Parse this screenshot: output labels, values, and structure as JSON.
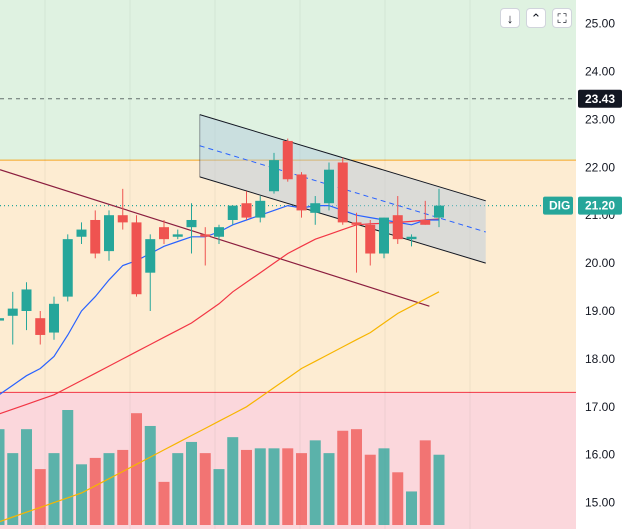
{
  "toolbar": {
    "buttons": [
      {
        "name": "scroll-down-button",
        "icon": "arrow-down-icon",
        "glyph": "↓"
      },
      {
        "name": "collapse-button",
        "icon": "collapse-icon",
        "glyph": "⌃"
      },
      {
        "name": "fullscreen-button",
        "icon": "fullscreen-icon",
        "glyph": "⛶"
      }
    ]
  },
  "chart_data": {
    "type": "candlestick",
    "symbol": "DIG",
    "last_price": "21.20",
    "level_price": "23.43",
    "yaxis_ticks": [
      "25.00",
      "24.00",
      "23.00",
      "22.00",
      "21.00",
      "20.00",
      "19.00",
      "18.00",
      "17.00",
      "16.00",
      "15.00"
    ],
    "ylim": [
      14.8,
      25.3
    ],
    "colors": {
      "up": "#26a69a",
      "down": "#ef5350",
      "ma_fast": "#2962ff",
      "ma_mid": "#f23645",
      "ma_slow": "#f7b500",
      "channel": "#131722",
      "zone_top": "#dff2e1",
      "zone_mid": "#fdecd2",
      "zone_bottom": "#fbd7dc"
    },
    "candles": [
      {
        "o": 18.8,
        "h": 18.9,
        "l": 18.7,
        "c": 18.85
      },
      {
        "o": 18.9,
        "h": 19.4,
        "l": 18.3,
        "c": 19.05
      },
      {
        "o": 19.0,
        "h": 19.6,
        "l": 18.6,
        "c": 19.45
      },
      {
        "o": 18.85,
        "h": 19.0,
        "l": 18.3,
        "c": 18.5
      },
      {
        "o": 18.55,
        "h": 19.3,
        "l": 18.4,
        "c": 19.15
      },
      {
        "o": 19.3,
        "h": 20.6,
        "l": 19.2,
        "c": 20.5
      },
      {
        "o": 20.55,
        "h": 20.85,
        "l": 20.4,
        "c": 20.7
      },
      {
        "o": 20.9,
        "h": 21.1,
        "l": 20.1,
        "c": 20.2
      },
      {
        "o": 20.25,
        "h": 21.1,
        "l": 20.05,
        "c": 21.0
      },
      {
        "o": 21.0,
        "h": 21.55,
        "l": 20.7,
        "c": 20.85
      },
      {
        "o": 20.85,
        "h": 21.0,
        "l": 19.3,
        "c": 19.35
      },
      {
        "o": 19.8,
        "h": 20.6,
        "l": 19.0,
        "c": 20.5
      },
      {
        "o": 20.75,
        "h": 20.9,
        "l": 20.4,
        "c": 20.5
      },
      {
        "o": 20.55,
        "h": 20.7,
        "l": 20.5,
        "c": 20.6
      },
      {
        "o": 20.75,
        "h": 21.25,
        "l": 20.2,
        "c": 20.9
      },
      {
        "o": 20.6,
        "h": 20.75,
        "l": 19.95,
        "c": 20.55
      },
      {
        "o": 20.55,
        "h": 20.8,
        "l": 20.4,
        "c": 20.75
      },
      {
        "o": 20.9,
        "h": 21.2,
        "l": 20.8,
        "c": 21.2
      },
      {
        "o": 21.25,
        "h": 21.5,
        "l": 20.9,
        "c": 20.95
      },
      {
        "o": 20.95,
        "h": 21.4,
        "l": 20.85,
        "c": 21.3
      },
      {
        "o": 21.5,
        "h": 22.3,
        "l": 21.45,
        "c": 22.15
      },
      {
        "o": 22.55,
        "h": 22.6,
        "l": 21.7,
        "c": 21.75
      },
      {
        "o": 21.85,
        "h": 21.9,
        "l": 20.95,
        "c": 21.1
      },
      {
        "o": 21.05,
        "h": 21.4,
        "l": 20.8,
        "c": 21.25
      },
      {
        "o": 21.25,
        "h": 22.1,
        "l": 21.1,
        "c": 21.95
      },
      {
        "o": 22.1,
        "h": 22.2,
        "l": 20.8,
        "c": 20.85
      },
      {
        "o": 20.85,
        "h": 21.05,
        "l": 19.8,
        "c": 20.8
      },
      {
        "o": 20.8,
        "h": 20.9,
        "l": 19.95,
        "c": 20.2
      },
      {
        "o": 20.2,
        "h": 20.95,
        "l": 20.1,
        "c": 20.95
      },
      {
        "o": 21.0,
        "h": 21.4,
        "l": 20.4,
        "c": 20.5
      },
      {
        "o": 20.5,
        "h": 20.6,
        "l": 20.35,
        "c": 20.55
      },
      {
        "o": 20.9,
        "h": 21.3,
        "l": 20.8,
        "c": 20.8
      },
      {
        "o": 20.95,
        "h": 21.55,
        "l": 20.75,
        "c": 21.2
      }
    ],
    "volume_relative": [
      0.6,
      0.45,
      0.6,
      0.35,
      0.45,
      0.72,
      0.38,
      0.42,
      0.45,
      0.47,
      0.7,
      0.62,
      0.27,
      0.45,
      0.52,
      0.45,
      0.35,
      0.55,
      0.47,
      0.48,
      0.48,
      0.48,
      0.45,
      0.53,
      0.45,
      0.59,
      0.6,
      0.44,
      0.48,
      0.33,
      0.21,
      0.53,
      0.44
    ],
    "ma_fast": [
      17.25,
      17.45,
      17.65,
      17.8,
      18.05,
      18.5,
      19.0,
      19.3,
      19.65,
      19.95,
      20.05,
      20.2,
      20.35,
      20.45,
      20.55,
      20.55,
      20.65,
      20.8,
      20.9,
      21.0,
      21.1,
      21.2,
      21.15,
      21.2,
      21.2,
      21.1,
      21.0,
      20.95,
      20.9,
      20.85,
      20.8,
      20.9,
      20.9
    ],
    "ma_mid": [
      16.85,
      16.95,
      17.05,
      17.15,
      17.25,
      17.4,
      17.55,
      17.7,
      17.85,
      18.0,
      18.15,
      18.3,
      18.45,
      18.6,
      18.75,
      18.95,
      19.15,
      19.4,
      19.6,
      19.8,
      20.0,
      20.2,
      20.35,
      20.5,
      20.6,
      20.7,
      20.8,
      20.82,
      20.83,
      20.85,
      20.87,
      20.9,
      20.92
    ],
    "ma_slow": [
      14.6,
      14.7,
      14.8,
      14.9,
      15.0,
      15.1,
      15.2,
      15.35,
      15.5,
      15.65,
      15.8,
      15.95,
      16.1,
      16.25,
      16.4,
      16.55,
      16.7,
      16.85,
      17.0,
      17.2,
      17.4,
      17.6,
      17.8,
      17.95,
      18.1,
      18.25,
      18.4,
      18.55,
      18.75,
      18.95,
      19.1,
      19.25,
      19.4
    ]
  }
}
